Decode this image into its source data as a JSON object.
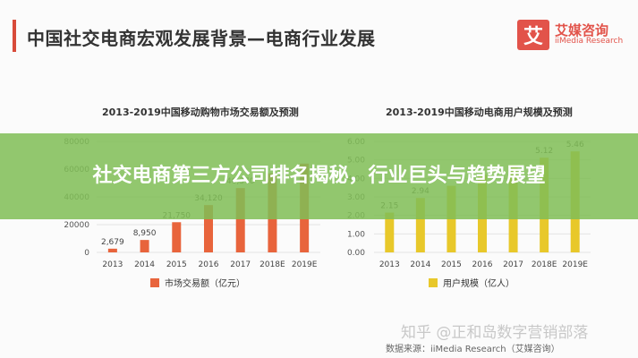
{
  "slide": {
    "title": "中国社交电商宏观发展背景—电商行业发展",
    "logo_cn": "艾媒咨询",
    "logo_en": "iiMedia Research",
    "logo_mark": "艾",
    "watermark": "知乎 @正和岛数字营销部落",
    "source": "数据来源：iiMedia Research（艾媒咨询）"
  },
  "overlay": {
    "headline": "社交电商第三方公司排名揭秘，行业巨头与趋势展望"
  },
  "colors": {
    "accent_red": "#d84b3a",
    "bar_left": "#e8643c",
    "bar_right": "#e8c82a",
    "overlay_green": "#80be56"
  },
  "chart_data": [
    {
      "type": "bar",
      "title": "2013-2019中国移动购物市场交易额及预测",
      "categories": [
        "2013",
        "2014",
        "2015",
        "2016",
        "2017",
        "2018E",
        "2019E"
      ],
      "series": [
        {
          "name": "市场交易额（亿元）",
          "values": [
            2679,
            8950,
            21750,
            34120,
            46370,
            57000,
            64000
          ]
        }
      ],
      "value_labels": [
        "2,679",
        "8,950",
        "21,750",
        "34,120",
        "46,370",
        "",
        ""
      ],
      "yticks": [
        "80000",
        "60000",
        "40000",
        "20000",
        "0"
      ],
      "ylim": [
        0,
        80000
      ],
      "grid": true,
      "legend": "bottom"
    },
    {
      "type": "bar",
      "title": "2013-2019中国移动电商用户规模及预测",
      "categories": [
        "2013",
        "2014",
        "2015",
        "2016",
        "2017",
        "2018E",
        "2019E"
      ],
      "series": [
        {
          "name": "用户规模（亿人）",
          "values": [
            2.15,
            2.94,
            3.6,
            4.2,
            4.73,
            5.12,
            5.46
          ]
        }
      ],
      "value_labels": [
        "2.15",
        "2.94",
        "",
        "",
        "",
        "5.12",
        "5.46"
      ],
      "yticks": [
        "6.00",
        "5.00",
        "4.00",
        "3.00",
        "2.00",
        "1.00",
        "0.00"
      ],
      "ylim": [
        0,
        6
      ],
      "grid": true,
      "legend": "bottom"
    }
  ]
}
